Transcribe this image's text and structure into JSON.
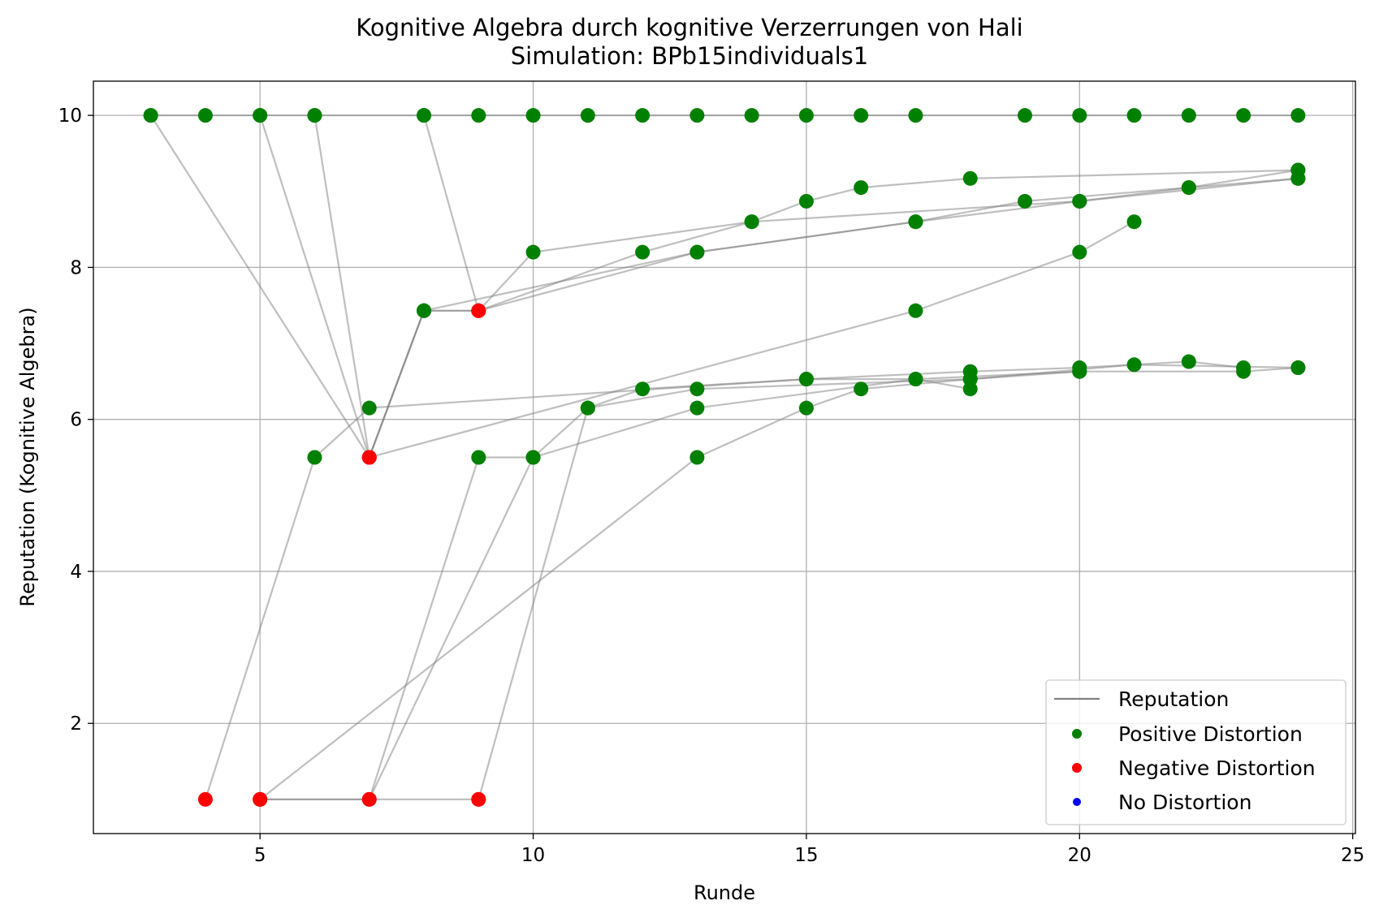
{
  "chart_data": {
    "type": "scatter",
    "title": "Kognitive Algebra durch kognitive Verzerrungen von Hali",
    "subtitle": "Simulation: BPb15individuals1",
    "xlabel": "Runde",
    "ylabel": "Reputation (Kognitive Algebra)",
    "xlim": [
      1.95,
      25.05
    ],
    "ylim": [
      0.55,
      10.45
    ],
    "xticks": [
      5,
      10,
      15,
      20,
      25
    ],
    "yticks": [
      2,
      4,
      6,
      8,
      10
    ],
    "grid": true,
    "legend_position": "lower right",
    "legend": [
      {
        "label": "Reputation",
        "kind": "line",
        "color": "#808080"
      },
      {
        "label": "Positive Distortion",
        "kind": "marker",
        "color": "#008000"
      },
      {
        "label": "Negative Distortion",
        "kind": "marker",
        "color": "#ff0000"
      },
      {
        "label": "No Distortion",
        "kind": "marker",
        "color": "#0000ff"
      }
    ],
    "series": [
      {
        "points": [
          [
            3,
            10
          ],
          [
            4,
            10
          ],
          [
            5,
            10
          ],
          [
            6,
            10
          ],
          [
            8,
            10
          ],
          [
            9,
            10
          ],
          [
            10,
            10
          ],
          [
            11,
            10
          ],
          [
            12,
            10
          ],
          [
            13,
            10
          ],
          [
            14,
            10
          ],
          [
            15,
            10
          ],
          [
            16,
            10
          ],
          [
            17,
            10
          ],
          [
            19,
            10
          ],
          [
            20,
            10
          ],
          [
            21,
            10
          ],
          [
            22,
            10
          ],
          [
            23,
            10
          ],
          [
            24,
            10
          ]
        ],
        "colors": [
          "g",
          "g",
          "g",
          "g",
          "g",
          "g",
          "g",
          "g",
          "g",
          "g",
          "g",
          "g",
          "g",
          "g",
          "g",
          "g",
          "g",
          "g",
          "g",
          "g"
        ]
      },
      {
        "points": [
          [
            3,
            10
          ],
          [
            7,
            5.5
          ],
          [
            8,
            7.43
          ],
          [
            9,
            7.43
          ],
          [
            10,
            8.2
          ],
          [
            14,
            8.6
          ],
          [
            15,
            8.87
          ],
          [
            16,
            9.05
          ],
          [
            18,
            9.17
          ],
          [
            24,
            9.28
          ]
        ],
        "colors": [
          "g",
          "r",
          "g",
          "r",
          "g",
          "g",
          "g",
          "g",
          "g",
          "g"
        ]
      },
      {
        "points": [
          [
            5,
            10
          ],
          [
            7,
            5.5
          ],
          [
            8,
            7.43
          ],
          [
            13,
            8.2
          ],
          [
            17,
            8.6
          ],
          [
            19,
            8.87
          ],
          [
            22,
            9.05
          ],
          [
            24,
            9.17
          ]
        ],
        "colors": [
          "g",
          "r",
          "g",
          "g",
          "g",
          "g",
          "g",
          "g"
        ]
      },
      {
        "points": [
          [
            6,
            10
          ],
          [
            7,
            5.5
          ],
          [
            8,
            7.43
          ],
          [
            9,
            7.43
          ],
          [
            12,
            8.2
          ],
          [
            14,
            8.6
          ],
          [
            20,
            8.87
          ],
          [
            22,
            9.05
          ],
          [
            24,
            9.28
          ]
        ],
        "colors": [
          "g",
          "r",
          "g",
          "r",
          "g",
          "g",
          "g",
          "g",
          "g"
        ]
      },
      {
        "points": [
          [
            8,
            10
          ],
          [
            9,
            7.43
          ],
          [
            13,
            8.2
          ],
          [
            17,
            8.6
          ],
          [
            20,
            8.87
          ],
          [
            24,
            9.17
          ]
        ],
        "colors": [
          "g",
          "r",
          "g",
          "g",
          "g",
          "g"
        ]
      },
      {
        "points": [
          [
            4,
            1
          ],
          [
            6,
            5.5
          ],
          [
            7,
            6.15
          ],
          [
            15,
            6.53
          ],
          [
            18,
            6.63
          ],
          [
            20,
            6.68
          ],
          [
            22,
            6.76
          ],
          [
            23,
            6.68
          ]
        ],
        "colors": [
          "r",
          "g",
          "g",
          "g",
          "g",
          "g",
          "g",
          "g"
        ]
      },
      {
        "points": [
          [
            7,
            5.5
          ],
          [
            17,
            7.43
          ],
          [
            20,
            8.2
          ],
          [
            21,
            8.6
          ]
        ],
        "colors": [
          "r",
          "g",
          "g",
          "g"
        ]
      },
      {
        "points": [
          [
            5,
            1
          ],
          [
            7,
            1
          ],
          [
            9,
            5.5
          ],
          [
            10,
            5.5
          ],
          [
            13,
            6.15
          ],
          [
            17,
            6.53
          ],
          [
            20,
            6.63
          ],
          [
            23,
            6.63
          ],
          [
            24,
            6.68
          ]
        ],
        "colors": [
          "r",
          "r",
          "g",
          "g",
          "g",
          "g",
          "g",
          "g",
          "g"
        ]
      },
      {
        "points": [
          [
            7,
            1
          ],
          [
            10,
            5.5
          ],
          [
            11,
            6.15
          ],
          [
            12,
            6.4
          ],
          [
            15,
            6.53
          ],
          [
            17,
            6.53
          ],
          [
            18,
            6.4
          ]
        ],
        "colors": [
          "r",
          "g",
          "g",
          "g",
          "g",
          "g",
          "g"
        ]
      },
      {
        "points": [
          [
            5,
            1
          ],
          [
            13,
            5.5
          ],
          [
            15,
            6.15
          ],
          [
            16,
            6.4
          ],
          [
            18,
            6.53
          ],
          [
            21,
            6.72
          ],
          [
            24,
            6.68
          ]
        ],
        "colors": [
          "r",
          "g",
          "g",
          "g",
          "g",
          "g",
          "g"
        ]
      },
      {
        "points": [
          [
            9,
            1
          ],
          [
            11,
            6.15
          ],
          [
            13,
            6.4
          ],
          [
            18,
            6.53
          ],
          [
            20,
            6.63
          ]
        ],
        "colors": [
          "r",
          "g",
          "g",
          "g",
          "g"
        ]
      },
      {
        "points": [
          [
            5,
            1
          ],
          [
            9,
            1
          ]
        ],
        "colors": [
          "r",
          "r"
        ]
      }
    ],
    "colors": {
      "g": "#008000",
      "r": "#ff0000",
      "line": "#808080"
    }
  }
}
